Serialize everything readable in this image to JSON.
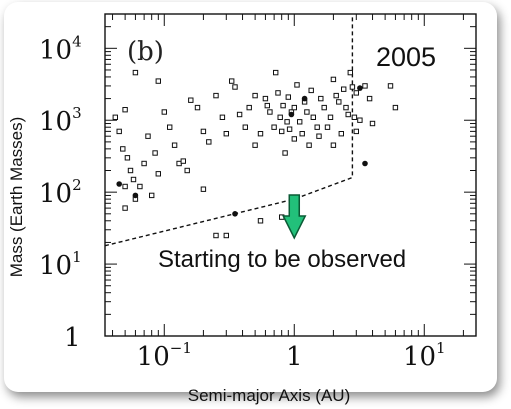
{
  "chart_data": {
    "type": "scatter",
    "title": "",
    "xlabel": "Semi-major Axis (AU)",
    "ylabel": "Mass (Earth Masses)",
    "x_scale": "log",
    "y_scale": "log",
    "xlim": [
      0.035,
      25
    ],
    "ylim": [
      1,
      30000
    ],
    "x_ticks": [
      {
        "value": 0.1,
        "base": "10",
        "exp": "−1"
      },
      {
        "value": 1,
        "base": "1",
        "exp": ""
      },
      {
        "value": 10,
        "base": "10",
        "exp": "1"
      }
    ],
    "y_ticks": [
      {
        "value": 1,
        "base": "1",
        "exp": ""
      },
      {
        "value": 10,
        "base": "10",
        "exp": "1"
      },
      {
        "value": 100,
        "base": "10",
        "exp": "2"
      },
      {
        "value": 1000,
        "base": "10",
        "exp": "3"
      },
      {
        "value": 10000,
        "base": "10",
        "exp": "4"
      }
    ],
    "panel_label": "(b)",
    "year_label": "2005",
    "annotation": "Starting to be observed",
    "annotation_arrow_color": "#22c07a",
    "detection_limit": {
      "x": [
        0.035,
        1.0,
        2.8,
        2.8
      ],
      "y": [
        18,
        80,
        160,
        30000
      ]
    },
    "planets_open": [
      [
        0.06,
        4600
      ],
      [
        0.05,
        1400
      ],
      [
        0.09,
        3500
      ],
      [
        0.042,
        1100
      ],
      [
        0.045,
        700
      ],
      [
        0.048,
        400
      ],
      [
        0.052,
        300
      ],
      [
        0.055,
        200
      ],
      [
        0.058,
        150
      ],
      [
        0.065,
        120
      ],
      [
        0.07,
        250
      ],
      [
        0.075,
        600
      ],
      [
        0.08,
        90
      ],
      [
        0.085,
        350
      ],
      [
        0.09,
        180
      ],
      [
        0.1,
        1300
      ],
      [
        0.11,
        800
      ],
      [
        0.12,
        450
      ],
      [
        0.13,
        250
      ],
      [
        0.14,
        270
      ],
      [
        0.15,
        200
      ],
      [
        0.16,
        1900
      ],
      [
        0.18,
        1500
      ],
      [
        0.2,
        700
      ],
      [
        0.22,
        500
      ],
      [
        0.25,
        2200
      ],
      [
        0.28,
        1100
      ],
      [
        0.3,
        650
      ],
      [
        0.33,
        3500
      ],
      [
        0.35,
        2900
      ],
      [
        0.38,
        1200
      ],
      [
        0.42,
        800
      ],
      [
        0.45,
        1500
      ],
      [
        0.5,
        2200
      ],
      [
        0.5,
        450
      ],
      [
        0.55,
        650
      ],
      [
        0.6,
        2000
      ],
      [
        0.62,
        1600
      ],
      [
        0.65,
        1300
      ],
      [
        0.7,
        800
      ],
      [
        0.72,
        4600
      ],
      [
        0.75,
        2400
      ],
      [
        0.78,
        1100
      ],
      [
        0.8,
        700
      ],
      [
        0.82,
        1600
      ],
      [
        0.85,
        350
      ],
      [
        0.88,
        950
      ],
      [
        0.9,
        2100
      ],
      [
        0.92,
        750
      ],
      [
        0.95,
        1300
      ],
      [
        1.0,
        1500
      ],
      [
        1.0,
        550
      ],
      [
        1.05,
        3100
      ],
      [
        1.1,
        950
      ],
      [
        1.15,
        650
      ],
      [
        1.2,
        1800
      ],
      [
        1.25,
        1300
      ],
      [
        1.3,
        450
      ],
      [
        1.35,
        2600
      ],
      [
        1.4,
        1100
      ],
      [
        1.5,
        800
      ],
      [
        1.55,
        600
      ],
      [
        1.6,
        2000
      ],
      [
        1.7,
        1500
      ],
      [
        1.8,
        800
      ],
      [
        1.9,
        1100
      ],
      [
        2.0,
        450
      ],
      [
        2.0,
        3700
      ],
      [
        2.1,
        2200
      ],
      [
        2.2,
        1800
      ],
      [
        2.3,
        650
      ],
      [
        2.4,
        2700
      ],
      [
        2.5,
        1500
      ],
      [
        2.6,
        1200
      ],
      [
        2.7,
        4600
      ],
      [
        2.8,
        2900
      ],
      [
        2.9,
        1100
      ],
      [
        3.0,
        700
      ],
      [
        3.0,
        2400
      ],
      [
        3.2,
        1000
      ],
      [
        3.5,
        3000
      ],
      [
        3.8,
        2000
      ],
      [
        4.0,
        900
      ],
      [
        5.5,
        3000
      ],
      [
        6.0,
        1500
      ],
      [
        0.05,
        60
      ],
      [
        0.06,
        80
      ],
      [
        0.05,
        120
      ],
      [
        0.2,
        110
      ],
      [
        0.25,
        25
      ],
      [
        0.3,
        25
      ],
      [
        0.8,
        45
      ],
      [
        0.55,
        40
      ]
    ],
    "planets_filled": [
      [
        0.045,
        130
      ],
      [
        0.06,
        90
      ],
      [
        0.35,
        50
      ],
      [
        3.2,
        2800
      ],
      [
        3.5,
        250
      ],
      [
        1.2,
        2000
      ],
      [
        0.95,
        1200
      ]
    ]
  }
}
